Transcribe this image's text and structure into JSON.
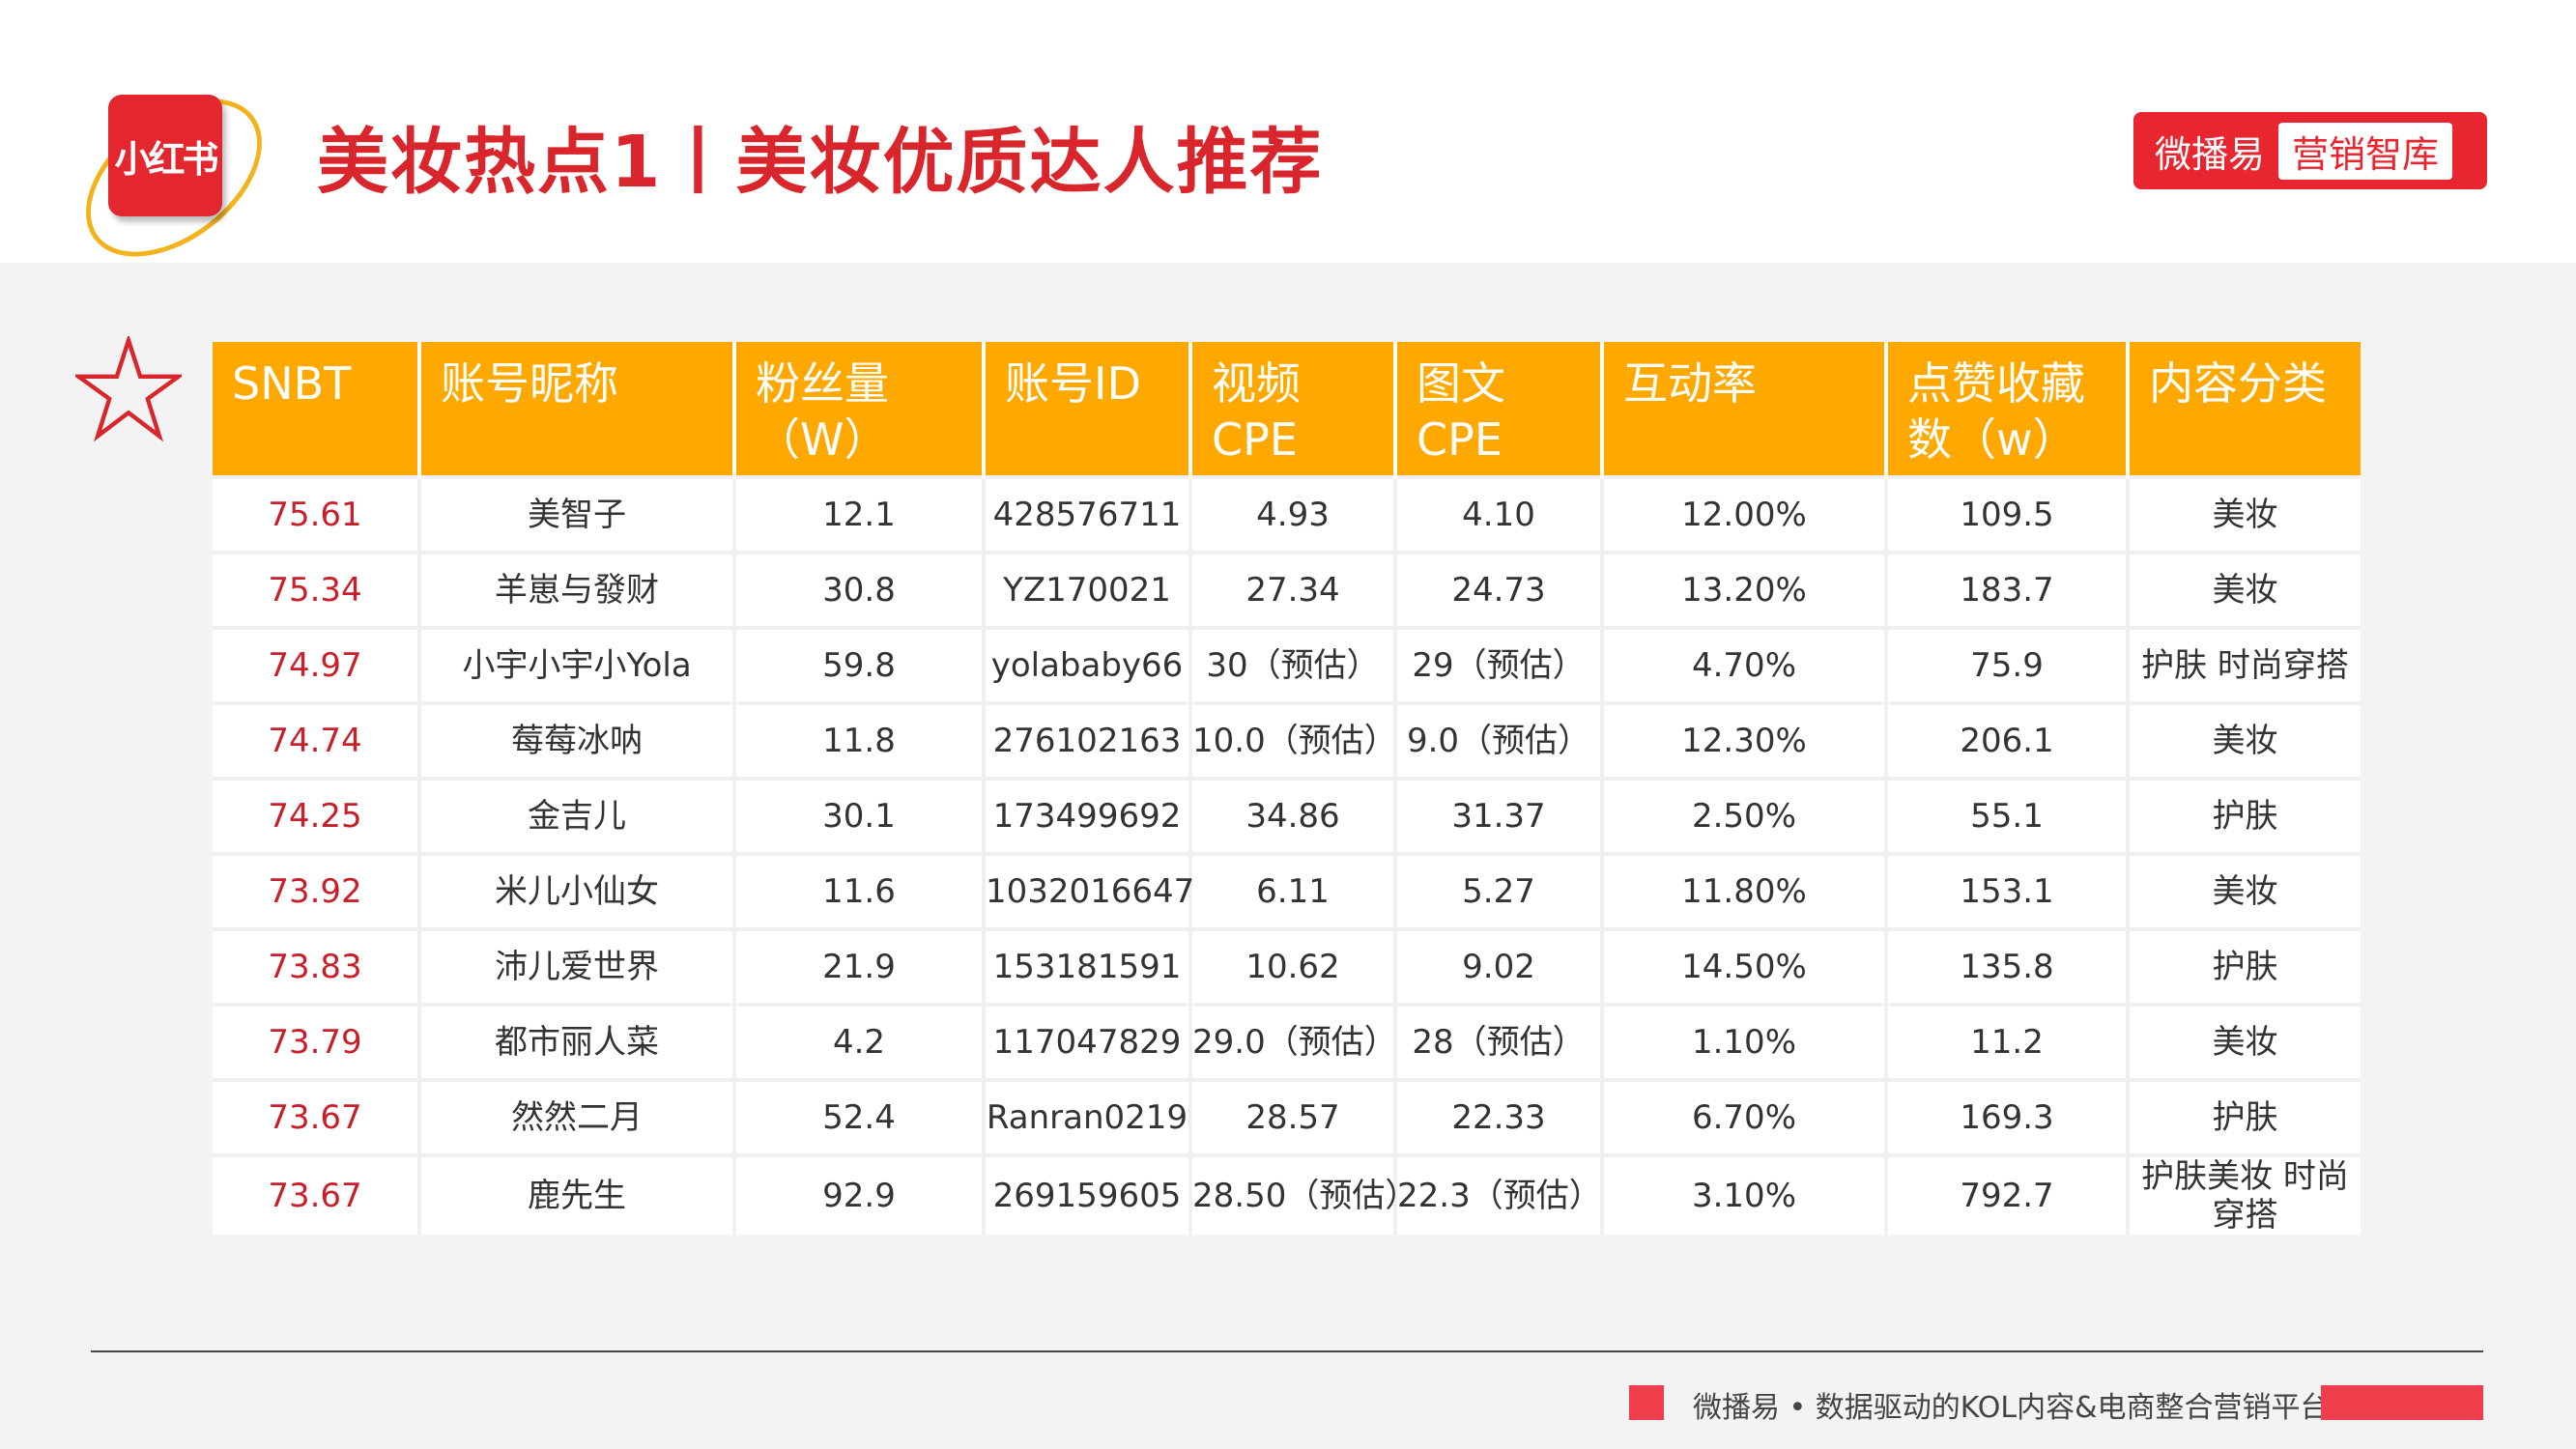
{
  "header": {
    "logo_text": "小红书",
    "title": "美妆热点1丨美妆优质达人推荐",
    "brand_name": "微播易",
    "brand_tag": "营销智库"
  },
  "colors": {
    "title_red": "#d9262c",
    "header_orange": "#ffa800",
    "brand_red": "#e8262f",
    "snbt_red": "#c8202a"
  },
  "table": {
    "columns": [
      "SNBT",
      "账号昵称",
      "粉丝量（W）",
      "账号ID",
      "视频 CPE",
      "图文 CPE",
      "互动率",
      "点赞收藏数（w）",
      "内容分类"
    ],
    "rows": [
      [
        "75.61",
        "美智子",
        "12.1",
        "428576711",
        "4.93",
        "4.10",
        "12.00%",
        "109.5",
        "美妆"
      ],
      [
        "75.34",
        "羊崽与發财",
        "30.8",
        "YZ170021",
        "27.34",
        "24.73",
        "13.20%",
        "183.7",
        "美妆"
      ],
      [
        "74.97",
        "小宇小宇小Yola",
        "59.8",
        "yolababy66",
        "30（预估）",
        "29（预估）",
        "4.70%",
        "75.9",
        "护肤 时尚穿搭"
      ],
      [
        "74.74",
        "莓莓冰呐",
        "11.8",
        "276102163",
        "10.0（预估）",
        "9.0（预估）",
        "12.30%",
        "206.1",
        "美妆"
      ],
      [
        "74.25",
        "金吉儿",
        "30.1",
        "173499692",
        "34.86",
        "31.37",
        "2.50%",
        "55.1",
        "护肤"
      ],
      [
        "73.92",
        "米儿小仙女",
        "11.6",
        "1032016647",
        "6.11",
        "5.27",
        "11.80%",
        "153.1",
        "美妆"
      ],
      [
        "73.83",
        "沛儿爱世界",
        "21.9",
        "153181591",
        "10.62",
        "9.02",
        "14.50%",
        "135.8",
        "护肤"
      ],
      [
        "73.79",
        "都市丽人菜",
        "4.2",
        "117047829",
        "29.0（预估）",
        "28（预估）",
        "1.10%",
        "11.2",
        "美妆"
      ],
      [
        "73.67",
        "然然二月",
        "52.4",
        "Ranran0219",
        "28.57",
        "22.33",
        "6.70%",
        "169.3",
        "护肤"
      ],
      [
        "73.67",
        "鹿先生",
        "92.9",
        "269159605",
        "28.50（预估）",
        "22.3（预估）",
        "3.10%",
        "792.7",
        "护肤美妆 时尚穿搭"
      ]
    ]
  },
  "footer": {
    "text": "微播易 • 数据驱动的KOL内容&电商整合营销平台"
  }
}
